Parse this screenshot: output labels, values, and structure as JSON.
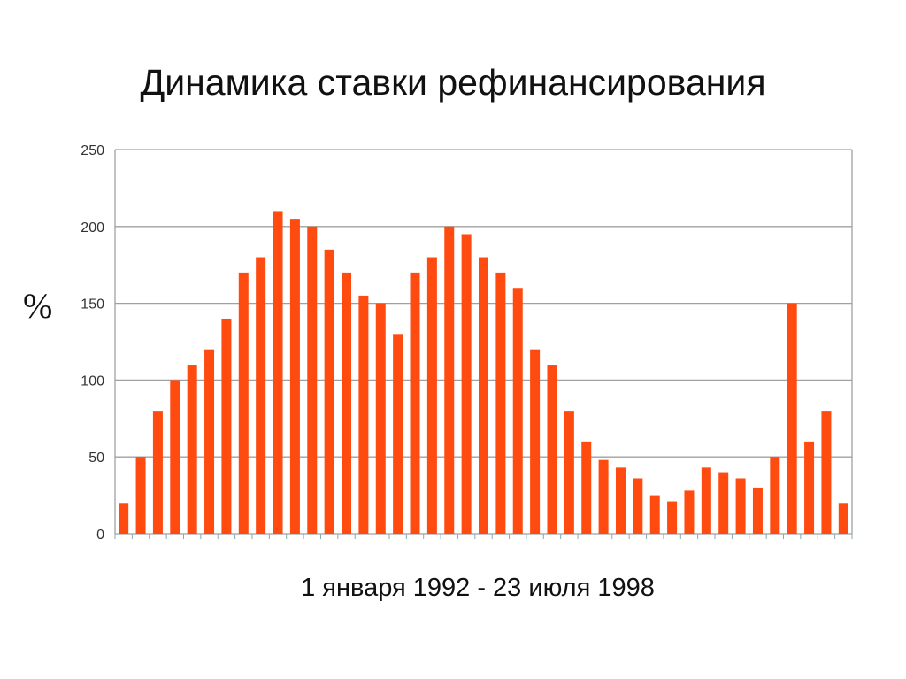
{
  "chart_data": {
    "type": "bar",
    "title": "Динамика ставки рефинансирования",
    "ylabel": "%",
    "xlabel": "1 января 1992 - 23 июля 1998",
    "ylim": [
      0,
      250
    ],
    "yticks": [
      "0",
      "50",
      "100",
      "150",
      "200",
      "250"
    ],
    "grid": true,
    "bar_color": "#ff4a10",
    "values": [
      20,
      50,
      80,
      100,
      110,
      120,
      140,
      170,
      180,
      210,
      205,
      200,
      185,
      170,
      155,
      150,
      130,
      170,
      180,
      200,
      195,
      180,
      170,
      160,
      120,
      110,
      80,
      60,
      48,
      43,
      36,
      25,
      21,
      28,
      43,
      40,
      36,
      30,
      50,
      150,
      60,
      80,
      20
    ]
  }
}
